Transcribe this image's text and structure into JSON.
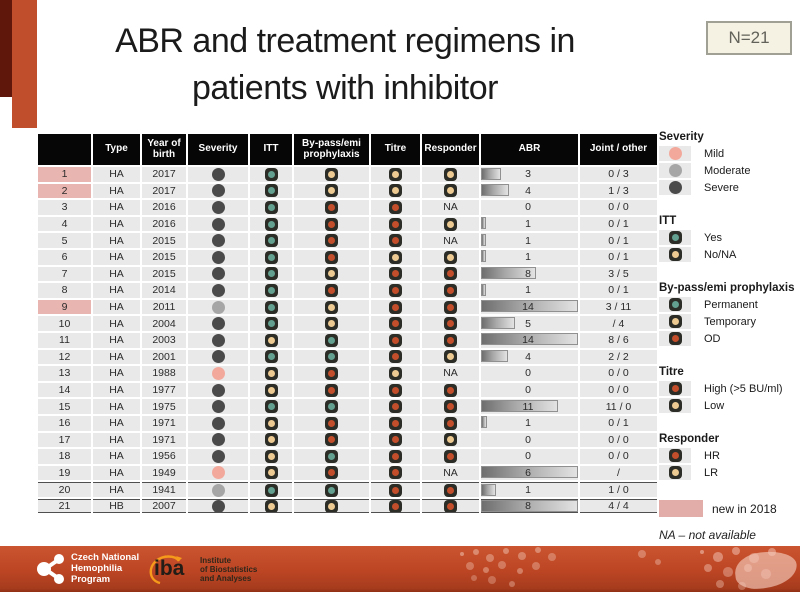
{
  "slide": {
    "title_line1": "ABR and treatment regimens in",
    "title_line2": "patients with inhibitor",
    "n_badge": "N=21"
  },
  "colors": {
    "accent_orange": "#c04d2c",
    "accent_dark": "#5e170a",
    "new2018_pink": "#e9b5b0",
    "severity": {
      "mild": "#f2a99c",
      "moderate": "#a6a6a6",
      "severe": "#4a4a4a"
    },
    "marker": {
      "teal": "#63a08f",
      "tan": "#ecca92",
      "red": "#c24e2b"
    },
    "marker_map": {
      "yes": "teal",
      "no_na": "tan",
      "permanent": "teal",
      "temporary": "tan",
      "od": "red",
      "high": "red",
      "low": "tan",
      "hr": "red",
      "lr": "tan"
    },
    "na_text": "NA"
  },
  "table": {
    "columns": [
      "",
      "Type",
      "Year of birth",
      "Severity",
      "ITT",
      "By-pass/emi prophylaxis",
      "Titre",
      "Responder",
      "ABR",
      "Joint / other"
    ],
    "rows": [
      {
        "num": "1",
        "new": true,
        "type": "HA",
        "birth": "2017",
        "severity": "severe",
        "itt": "yes",
        "bypass": "temporary",
        "titre": "low",
        "responder": "lr",
        "abr": "3",
        "bar": 0.21,
        "joint": "0 / 3"
      },
      {
        "num": "2",
        "new": true,
        "type": "HA",
        "birth": "2017",
        "severity": "severe",
        "itt": "yes",
        "bypass": "temporary",
        "titre": "low",
        "responder": "lr",
        "abr": "4",
        "bar": 0.29,
        "joint": "1 / 3"
      },
      {
        "num": "3",
        "new": false,
        "type": "HA",
        "birth": "2016",
        "severity": "severe",
        "itt": "yes",
        "bypass": "od",
        "titre": "high",
        "responder": "na",
        "abr": "0",
        "bar": 0,
        "joint": "0 / 0"
      },
      {
        "num": "4",
        "new": false,
        "type": "HA",
        "birth": "2016",
        "severity": "severe",
        "itt": "yes",
        "bypass": "od",
        "titre": "high",
        "responder": "lr",
        "abr": "1",
        "bar": 0.05,
        "joint": "0 / 1"
      },
      {
        "num": "5",
        "new": false,
        "type": "HA",
        "birth": "2015",
        "severity": "severe",
        "itt": "yes",
        "bypass": "od",
        "titre": "high",
        "responder": "na",
        "abr": "1",
        "bar": 0.05,
        "joint": "0 / 1"
      },
      {
        "num": "6",
        "new": false,
        "type": "HA",
        "birth": "2015",
        "severity": "severe",
        "itt": "yes",
        "bypass": "od",
        "titre": "low",
        "responder": "lr",
        "abr": "1",
        "bar": 0.05,
        "joint": "0 / 1"
      },
      {
        "num": "7",
        "new": false,
        "type": "HA",
        "birth": "2015",
        "severity": "severe",
        "itt": "yes",
        "bypass": "temporary",
        "titre": "high",
        "responder": "hr",
        "abr": "8",
        "bar": 0.57,
        "joint": "3 / 5"
      },
      {
        "num": "8",
        "new": false,
        "type": "HA",
        "birth": "2014",
        "severity": "severe",
        "itt": "yes",
        "bypass": "od",
        "titre": "high",
        "responder": "hr",
        "abr": "1",
        "bar": 0.05,
        "joint": "0 / 1"
      },
      {
        "num": "9",
        "new": true,
        "type": "HA",
        "birth": "2011",
        "severity": "moderate",
        "itt": "yes",
        "bypass": "temporary",
        "titre": "high",
        "responder": "hr",
        "abr": "14",
        "bar": 1,
        "joint": "3 / 11"
      },
      {
        "num": "10",
        "new": false,
        "type": "HA",
        "birth": "2004",
        "severity": "severe",
        "itt": "yes",
        "bypass": "temporary",
        "titre": "high",
        "responder": "hr",
        "abr": "5",
        "bar": 0.35,
        "joint": "/ 4"
      },
      {
        "num": "11",
        "new": false,
        "type": "HA",
        "birth": "2003",
        "severity": "severe",
        "itt": "no_na",
        "bypass": "permanent",
        "titre": "high",
        "responder": "hr",
        "abr": "14",
        "bar": 1,
        "joint": "8 / 6"
      },
      {
        "num": "12",
        "new": false,
        "type": "HA",
        "birth": "2001",
        "severity": "severe",
        "itt": "yes",
        "bypass": "permanent",
        "titre": "high",
        "responder": "lr",
        "abr": "4",
        "bar": 0.28,
        "joint": "2 / 2"
      },
      {
        "num": "13",
        "new": false,
        "type": "HA",
        "birth": "1988",
        "severity": "mild",
        "itt": "no_na",
        "bypass": "od",
        "titre": "low",
        "responder": "na",
        "abr": "0",
        "bar": 0,
        "joint": "0 / 0"
      },
      {
        "num": "14",
        "new": false,
        "type": "HA",
        "birth": "1977",
        "severity": "severe",
        "itt": "no_na",
        "bypass": "od",
        "titre": "high",
        "responder": "hr",
        "abr": "0",
        "bar": 0,
        "joint": "0 / 0"
      },
      {
        "num": "15",
        "new": false,
        "type": "HA",
        "birth": "1975",
        "severity": "severe",
        "itt": "yes",
        "bypass": "permanent",
        "titre": "high",
        "responder": "hr",
        "abr": "11",
        "bar": 0.79,
        "joint": "11 / 0"
      },
      {
        "num": "16",
        "new": false,
        "type": "HA",
        "birth": "1971",
        "severity": "severe",
        "itt": "no_na",
        "bypass": "od",
        "titre": "high",
        "responder": "hr",
        "abr": "1",
        "bar": 0.06,
        "joint": "0 / 1"
      },
      {
        "num": "17",
        "new": false,
        "type": "HA",
        "birth": "1971",
        "severity": "severe",
        "itt": "no_na",
        "bypass": "od",
        "titre": "high",
        "responder": "lr",
        "abr": "0",
        "bar": 0,
        "joint": "0 / 0"
      },
      {
        "num": "18",
        "new": false,
        "type": "HA",
        "birth": "1956",
        "severity": "severe",
        "itt": "no_na",
        "bypass": "permanent",
        "titre": "high",
        "responder": "hr",
        "abr": "0",
        "bar": 0,
        "joint": "0 / 0"
      },
      {
        "num": "19",
        "new": false,
        "type": "HA",
        "birth": "1949",
        "severity": "mild",
        "itt": "no_na",
        "bypass": "od",
        "titre": "high",
        "responder": "na",
        "abr": "6",
        "bar": 1,
        "joint": "/",
        "sep": false
      },
      {
        "num": "20",
        "new": false,
        "type": "HA",
        "birth": "1941",
        "severity": "moderate",
        "itt": "yes",
        "bypass": "permanent",
        "titre": "high",
        "responder": "hr",
        "abr": "1",
        "bar": 0.15,
        "joint": "1 / 0",
        "sep": true
      },
      {
        "num": "21",
        "new": false,
        "type": "HB",
        "birth": "2007",
        "severity": "severe",
        "itt": "no_na",
        "bypass": "temporary",
        "titre": "high",
        "responder": "hr",
        "abr": "8",
        "bar": 1,
        "joint": "4 / 4",
        "sep": true,
        "sepb": true
      }
    ]
  },
  "legend": {
    "sections": [
      {
        "title": "Severity",
        "shape": "circle",
        "items": [
          {
            "label": "Mild",
            "color_ref": "severity.mild"
          },
          {
            "label": "Moderate",
            "color_ref": "severity.moderate"
          },
          {
            "label": "Severe",
            "color_ref": "severity.severe"
          }
        ]
      },
      {
        "title": "ITT",
        "shape": "square",
        "items": [
          {
            "label": "Yes",
            "color_ref": "marker.teal"
          },
          {
            "label": "No/NA",
            "color_ref": "marker.tan"
          }
        ]
      },
      {
        "title": "By-pass/emi prophylaxis",
        "shape": "square",
        "items": [
          {
            "label": "Permanent",
            "color_ref": "marker.teal"
          },
          {
            "label": "Temporary",
            "color_ref": "marker.tan"
          },
          {
            "label": "OD",
            "color_ref": "marker.red"
          }
        ]
      },
      {
        "title": "Titre",
        "shape": "square",
        "items": [
          {
            "label": "High (>5 BU/ml)",
            "color_ref": "marker.red"
          },
          {
            "label": "Low",
            "color_ref": "marker.tan"
          }
        ]
      },
      {
        "title": "Responder",
        "shape": "square",
        "items": [
          {
            "label": "HR",
            "color_ref": "marker.red"
          },
          {
            "label": "LR",
            "color_ref": "marker.tan"
          }
        ]
      }
    ],
    "new_in_2018": "new in 2018",
    "na_note": "NA – not available"
  },
  "footer": {
    "cnhp": {
      "line1": "Czech National",
      "line2": "Hemophilia",
      "line3": "Program"
    },
    "iba": {
      "brand": "iba",
      "line1": "Institute",
      "line2": "of Biostatistics",
      "line3": "and Analyses"
    }
  }
}
